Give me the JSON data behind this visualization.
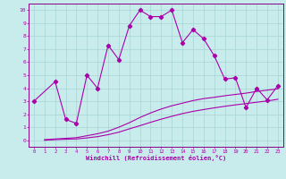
{
  "xlabel": "Windchill (Refroidissement éolien,°C)",
  "background_color": "#c8ecec",
  "grid_color": "#a8d4d4",
  "line_color": "#aa00aa",
  "spine_color": "#880088",
  "xlim_min": -0.5,
  "xlim_max": 23.5,
  "ylim_min": -0.5,
  "ylim_max": 10.5,
  "xticks": [
    0,
    1,
    2,
    3,
    4,
    5,
    6,
    7,
    8,
    9,
    10,
    11,
    12,
    13,
    14,
    15,
    16,
    17,
    18,
    19,
    20,
    21,
    22,
    23
  ],
  "yticks": [
    0,
    1,
    2,
    3,
    4,
    5,
    6,
    7,
    8,
    9,
    10
  ],
  "line1_x": [
    0,
    2,
    3,
    4,
    5,
    6,
    7,
    8,
    9,
    10,
    11,
    12,
    13,
    14,
    15,
    16,
    17,
    18,
    19,
    20,
    21,
    22,
    23
  ],
  "line1_y": [
    3.0,
    4.5,
    1.6,
    1.3,
    5.0,
    4.0,
    7.3,
    6.2,
    8.8,
    10.0,
    9.5,
    9.5,
    10.0,
    7.5,
    8.5,
    7.8,
    6.5,
    4.7,
    4.8,
    2.5,
    4.0,
    3.1,
    4.2
  ],
  "line2_x": [
    1,
    2,
    3,
    4,
    5,
    6,
    7,
    8,
    9,
    10,
    11,
    12,
    13,
    14,
    15,
    16,
    17,
    18,
    19,
    20,
    21,
    22,
    23
  ],
  "line2_y": [
    0.05,
    0.1,
    0.15,
    0.2,
    0.35,
    0.5,
    0.7,
    1.0,
    1.35,
    1.75,
    2.1,
    2.4,
    2.65,
    2.85,
    3.05,
    3.2,
    3.3,
    3.42,
    3.52,
    3.62,
    3.75,
    3.85,
    3.95
  ],
  "line3_x": [
    1,
    2,
    3,
    4,
    5,
    6,
    7,
    8,
    9,
    10,
    11,
    12,
    13,
    14,
    15,
    16,
    17,
    18,
    19,
    20,
    21,
    22,
    23
  ],
  "line3_y": [
    0.0,
    0.05,
    0.08,
    0.1,
    0.18,
    0.28,
    0.43,
    0.62,
    0.88,
    1.12,
    1.38,
    1.62,
    1.84,
    2.05,
    2.22,
    2.36,
    2.49,
    2.61,
    2.72,
    2.82,
    2.92,
    3.02,
    3.15
  ]
}
